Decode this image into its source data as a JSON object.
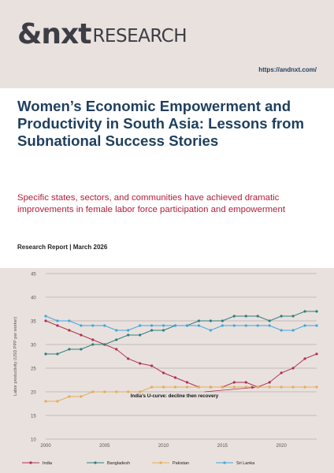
{
  "brand": {
    "mark": "&nxt",
    "word": "RESEARCH",
    "url": "https://andnxt.com/"
  },
  "document": {
    "title_bold": "Women’s Economic Empowerment and Productivity in South Asia:",
    "title_regular": "Lessons from Subnational Success Stories",
    "subtitle": "Specific states, sectors, and communities have achieved dramatic improvements in female labor force participation and empowerment",
    "meta": "Research Report | March 2026"
  },
  "colors": {
    "title": "#1f3f5e",
    "accent": "#b11d3b",
    "background": "#e9e1de"
  },
  "chart_data": {
    "type": "line",
    "ylabel": "Labor productivity (USD PPP per worker)",
    "ylim": [
      10,
      45
    ],
    "yticks": [
      10,
      15,
      20,
      25,
      30,
      35,
      40,
      45
    ],
    "xlim": [
      2000,
      2023
    ],
    "xticks": [
      2000,
      2005,
      2010,
      2015,
      2020
    ],
    "x": [
      2000,
      2001,
      2002,
      2003,
      2004,
      2005,
      2006,
      2007,
      2008,
      2009,
      2010,
      2011,
      2012,
      2013,
      2014,
      2015,
      2016,
      2017,
      2018,
      2019,
      2020,
      2021,
      2022,
      2023
    ],
    "series": [
      {
        "name": "India",
        "color": "#b0314f",
        "values": [
          35,
          34,
          33,
          32,
          31,
          30,
          29,
          27,
          26,
          25.5,
          24,
          23,
          22,
          21,
          21,
          21,
          22,
          22,
          21,
          22,
          24,
          25,
          27,
          28
        ]
      },
      {
        "name": "Bangladesh",
        "color": "#2f7e7c",
        "values": [
          28,
          28,
          29,
          29,
          30,
          30,
          31,
          32,
          32,
          33,
          33,
          34,
          34,
          35,
          35,
          35,
          36,
          36,
          36,
          35,
          36,
          36,
          37,
          37
        ]
      },
      {
        "name": "Pakistan",
        "color": "#e3ae56",
        "values": [
          18,
          18,
          19,
          19,
          20,
          20,
          20,
          20,
          20,
          21,
          21,
          21,
          21,
          21,
          21,
          21,
          21,
          21,
          21,
          21,
          21,
          21,
          21,
          21
        ]
      },
      {
        "name": "Sri Lanka",
        "color": "#3fa7df",
        "values": [
          36,
          35,
          35,
          34,
          34,
          34,
          33,
          33,
          34,
          34,
          34,
          34,
          34,
          34,
          33,
          34,
          34,
          34,
          34,
          34,
          33,
          33,
          34,
          34
        ]
      }
    ],
    "annotation": {
      "text": "India’s U-curve: decline then recovery",
      "x": 2012,
      "y": 21.5
    },
    "grid": true,
    "legend": "bottom"
  }
}
